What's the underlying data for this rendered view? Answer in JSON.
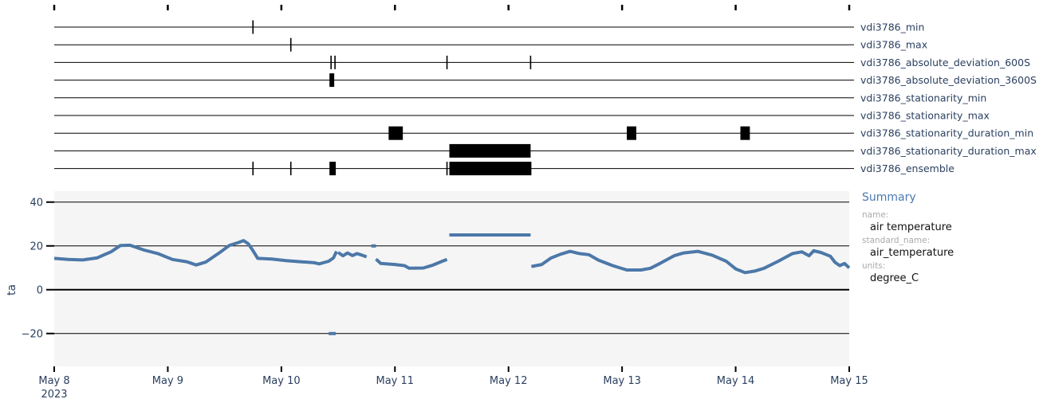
{
  "chart_data": [
    {
      "type": "event-timeline",
      "x_range": [
        "2023-05-08",
        "2023-05-15"
      ],
      "rows": [
        {
          "name": "vdi3786_min",
          "events": [
            {
              "start": "2023-05-09 18:00",
              "end": "2023-05-09 18:00"
            }
          ]
        },
        {
          "name": "vdi3786_max",
          "events": [
            {
              "start": "2023-05-10 02:00",
              "end": "2023-05-10 02:00"
            }
          ]
        },
        {
          "name": "vdi3786_absolute_deviation_600S",
          "events": [
            {
              "start": "2023-05-10 10:30",
              "end": "2023-05-10 10:30"
            },
            {
              "start": "2023-05-10 11:20",
              "end": "2023-05-10 11:20"
            },
            {
              "start": "2023-05-11 11:00",
              "end": "2023-05-11 11:00"
            },
            {
              "start": "2023-05-12 04:40",
              "end": "2023-05-12 04:40"
            }
          ]
        },
        {
          "name": "vdi3786_absolute_deviation_3600S",
          "events": [
            {
              "start": "2023-05-10 10:10",
              "end": "2023-05-10 11:10"
            }
          ]
        },
        {
          "name": "vdi3786_stationarity_min",
          "events": []
        },
        {
          "name": "vdi3786_stationarity_max",
          "events": []
        },
        {
          "name": "vdi3786_stationarity_duration_min",
          "events": [
            {
              "start": "2023-05-10 22:40",
              "end": "2023-05-11 01:40"
            },
            {
              "start": "2023-05-13 01:00",
              "end": "2023-05-13 03:00"
            },
            {
              "start": "2023-05-14 01:00",
              "end": "2023-05-14 03:00"
            }
          ]
        },
        {
          "name": "vdi3786_stationarity_duration_max",
          "events": [
            {
              "start": "2023-05-11 11:30",
              "end": "2023-05-12 04:40"
            }
          ]
        },
        {
          "name": "vdi3786_ensemble",
          "events": [
            {
              "start": "2023-05-09 18:00",
              "end": "2023-05-09 18:00"
            },
            {
              "start": "2023-05-10 02:00",
              "end": "2023-05-10 02:00"
            },
            {
              "start": "2023-05-10 10:10",
              "end": "2023-05-10 11:30"
            },
            {
              "start": "2023-05-11 11:00",
              "end": "2023-05-11 11:00"
            },
            {
              "start": "2023-05-11 11:30",
              "end": "2023-05-12 04:50"
            }
          ]
        }
      ]
    },
    {
      "type": "line",
      "xlabel": "",
      "ylabel": "ta",
      "x_range": [
        "2023-05-08",
        "2023-05-15"
      ],
      "ylim": [
        -35,
        45
      ],
      "yticks": [
        -20,
        0,
        20,
        40
      ],
      "xticks": [
        "2023-05-08",
        "2023-05-09",
        "2023-05-10",
        "2023-05-11",
        "2023-05-12",
        "2023-05-13",
        "2023-05-14",
        "2023-05-15"
      ],
      "xtick_labels": [
        "May 8",
        "May 9",
        "May 10",
        "May 11",
        "May 12",
        "May 13",
        "May 14",
        "May 15"
      ],
      "xtick_year": "2023",
      "grid": true,
      "segments": [
        {
          "points": [
            [
              "2023-05-08 00:00",
              14.3
            ],
            [
              "2023-05-08 03:00",
              13.8
            ],
            [
              "2023-05-08 06:00",
              13.6
            ],
            [
              "2023-05-08 09:00",
              14.5
            ],
            [
              "2023-05-08 12:00",
              17.3
            ],
            [
              "2023-05-08 14:00",
              20.2
            ],
            [
              "2023-05-08 16:00",
              20.3
            ],
            [
              "2023-05-08 19:00",
              18.1
            ],
            [
              "2023-05-08 22:00",
              16.4
            ],
            [
              "2023-05-09 01:00",
              13.8
            ],
            [
              "2023-05-09 04:00",
              12.8
            ],
            [
              "2023-05-09 06:00",
              11.3
            ],
            [
              "2023-05-09 08:00",
              12.6
            ],
            [
              "2023-05-09 11:00",
              17.0
            ],
            [
              "2023-05-09 13:00",
              20.2
            ],
            [
              "2023-05-09 15:00",
              21.6
            ],
            [
              "2023-05-09 16:00",
              22.4
            ],
            [
              "2023-05-09 17:00",
              21.0
            ],
            [
              "2023-05-09 18:00",
              17.8
            ],
            [
              "2023-05-09 19:00",
              14.3
            ],
            [
              "2023-05-09 22:00",
              14.0
            ],
            [
              "2023-05-10 01:00",
              13.3
            ],
            [
              "2023-05-10 04:00",
              12.8
            ],
            [
              "2023-05-10 07:00",
              12.3
            ],
            [
              "2023-05-10 08:00",
              11.8
            ],
            [
              "2023-05-10 10:00",
              13.0
            ],
            [
              "2023-05-10 11:00",
              14.5
            ],
            [
              "2023-05-10 11:40",
              17.5
            ]
          ]
        },
        {
          "points": [
            [
              "2023-05-10 12:00",
              17.0
            ],
            [
              "2023-05-10 13:00",
              15.5
            ],
            [
              "2023-05-10 14:00",
              16.8
            ],
            [
              "2023-05-10 15:00",
              15.6
            ],
            [
              "2023-05-10 16:00",
              16.5
            ],
            [
              "2023-05-10 17:00",
              15.8
            ],
            [
              "2023-05-10 18:00",
              15.0
            ]
          ]
        },
        {
          "points": [
            [
              "2023-05-10 19:00",
              20.0
            ],
            [
              "2023-05-10 20:00",
              20.0
            ]
          ]
        },
        {
          "points": [
            [
              "2023-05-10 20:00",
              14.0
            ],
            [
              "2023-05-10 21:00",
              12.0
            ],
            [
              "2023-05-11 00:00",
              11.5
            ],
            [
              "2023-05-11 02:00",
              11.0
            ],
            [
              "2023-05-11 03:00",
              9.8
            ],
            [
              "2023-05-11 06:00",
              9.9
            ],
            [
              "2023-05-11 08:00",
              11.2
            ],
            [
              "2023-05-11 10:00",
              13.0
            ],
            [
              "2023-05-11 11:00",
              13.8
            ]
          ]
        },
        {
          "points": [
            [
              "2023-05-10 10:00",
              -20.0
            ],
            [
              "2023-05-10 11:30",
              -20.0
            ]
          ]
        },
        {
          "points": [
            [
              "2023-05-11 11:30",
              25.0
            ],
            [
              "2023-05-12 04:40",
              25.0
            ]
          ]
        },
        {
          "points": [
            [
              "2023-05-12 04:50",
              10.6
            ],
            [
              "2023-05-12 07:00",
              11.5
            ],
            [
              "2023-05-12 09:00",
              14.5
            ],
            [
              "2023-05-12 11:00",
              16.2
            ],
            [
              "2023-05-12 13:00",
              17.5
            ],
            [
              "2023-05-12 15:00",
              16.5
            ],
            [
              "2023-05-12 17:00",
              16.0
            ],
            [
              "2023-05-12 19:00",
              13.5
            ],
            [
              "2023-05-12 22:00",
              11.0
            ],
            [
              "2023-05-13 01:00",
              9.0
            ],
            [
              "2023-05-13 04:00",
              9.0
            ],
            [
              "2023-05-13 06:00",
              9.8
            ],
            [
              "2023-05-13 08:00",
              12.0
            ],
            [
              "2023-05-13 11:00",
              15.5
            ],
            [
              "2023-05-13 13:00",
              16.8
            ],
            [
              "2023-05-13 16:00",
              17.5
            ],
            [
              "2023-05-13 19:00",
              15.8
            ],
            [
              "2023-05-13 22:00",
              13.0
            ],
            [
              "2023-05-14 00:00",
              9.5
            ],
            [
              "2023-05-14 02:00",
              7.8
            ],
            [
              "2023-05-14 04:00",
              8.5
            ],
            [
              "2023-05-14 06:00",
              9.8
            ],
            [
              "2023-05-14 09:00",
              13.0
            ],
            [
              "2023-05-14 12:00",
              16.5
            ],
            [
              "2023-05-14 14:00",
              17.3
            ],
            [
              "2023-05-14 15:30",
              15.5
            ],
            [
              "2023-05-14 16:30",
              17.8
            ],
            [
              "2023-05-14 18:00",
              17.0
            ],
            [
              "2023-05-14 20:00",
              15.3
            ],
            [
              "2023-05-14 21:00",
              12.5
            ],
            [
              "2023-05-14 22:00",
              11.0
            ],
            [
              "2023-05-14 23:00",
              12.0
            ],
            [
              "2023-05-15 00:00",
              10.0
            ]
          ]
        }
      ]
    }
  ],
  "summary": {
    "title": "Summary",
    "fields": [
      {
        "key": "name:",
        "value": "air temperature"
      },
      {
        "key": "standard_name:",
        "value": "air_temperature"
      },
      {
        "key": "units:",
        "value": "degree_C"
      }
    ]
  },
  "colors": {
    "series": "#4c78a8",
    "plot_bg": "#f5f5f5",
    "flag": "#000000",
    "text": "#2a3f5f"
  }
}
